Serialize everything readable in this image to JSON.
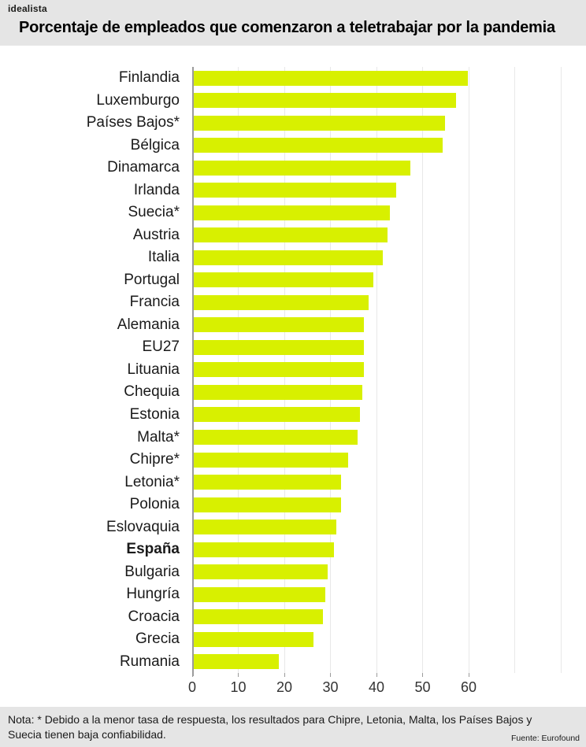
{
  "header": {
    "logo": "idealista",
    "title": "Porcentaje de empleados que comenzaron a teletrabajar por la pandemia"
  },
  "chart_data": {
    "type": "bar",
    "orientation": "horizontal",
    "title": "Porcentaje de empleados que comenzaron a teletrabajar por la pandemia",
    "categories": [
      "Finlandia",
      "Luxemburgo",
      "Países Bajos*",
      "Bélgica",
      "Dinamarca",
      "Irlanda",
      "Suecia*",
      "Austria",
      "Italia",
      "Portugal",
      "Francia",
      "Alemania",
      "EU27",
      "Lituania",
      "Chequia",
      "Estonia",
      "Malta*",
      "Chipre*",
      "Letonia*",
      "Polonia",
      "Eslovaquia",
      "España",
      "Bulgaria",
      "Hungría",
      "Croacia",
      "Grecia",
      "Rumania"
    ],
    "values": [
      59.5,
      57,
      54.5,
      54,
      47,
      44,
      42.5,
      42,
      41,
      39,
      38,
      37,
      37,
      37,
      36.5,
      36,
      35.5,
      33.5,
      32,
      32,
      31,
      30.5,
      29,
      28.5,
      28,
      26,
      18.5
    ],
    "bold_category": "España",
    "unit": "%",
    "xlabel": "",
    "ylabel": "",
    "xlim": [
      0,
      83.25
    ],
    "xticks": [
      0,
      10,
      20,
      30,
      40,
      50,
      60
    ],
    "gridlines": [
      10,
      20,
      30,
      40,
      50,
      60,
      70,
      80
    ],
    "bar_color": "#d8f000",
    "grid": true,
    "legend": false
  },
  "footer": {
    "note": "Nota: * Debido a la menor tasa de respuesta, los resultados para Chipre, Letonia, Malta, los Países Bajos y Suecia tienen baja confiabilidad.",
    "source": "Fuente: Eurofound"
  },
  "colors": {
    "bar": "#d8f000",
    "header_bg": "#e5e5e5",
    "footer_bg": "#e5e5e5",
    "axis": "#9b9b9b",
    "gridline": "#e8e8e8",
    "text": "#1a1a1a"
  }
}
